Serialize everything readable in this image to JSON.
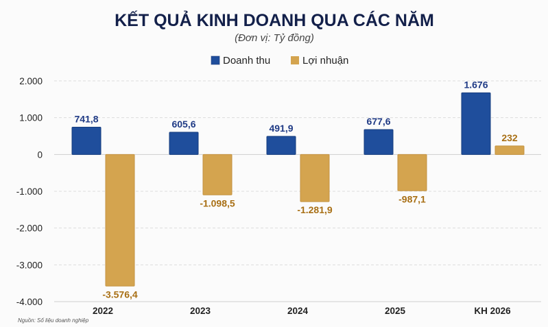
{
  "chart_data": {
    "type": "bar",
    "title": "KẾT QUẢ KINH DOANH QUA CÁC NĂM",
    "subtitle": "(Đơn vị: Tỷ đồng)",
    "categories": [
      "2022",
      "2023",
      "2024",
      "2025",
      "KH 2026"
    ],
    "series": [
      {
        "name": "Doanh thu",
        "color": "#1f4e9c",
        "values": [
          741.8,
          605.6,
          491.9,
          677.6,
          1676
        ],
        "labels": [
          "741,8",
          "605,6",
          "491,9",
          "677,6",
          "1.676"
        ],
        "label_color": "#1f3a85"
      },
      {
        "name": "Lợi nhuận",
        "color": "#d4a44f",
        "values": [
          -3576.4,
          -1098.5,
          -1281.9,
          -987.1,
          232
        ],
        "labels": [
          "-3.576,4",
          "-1.098,5",
          "-1.281,9",
          "-987,1",
          "232"
        ],
        "label_color": "#a86f14"
      }
    ],
    "ylim": [
      -4000,
      2000
    ],
    "yticks": [
      2000,
      1000,
      0,
      -1000,
      -2000,
      -3000,
      -4000
    ],
    "ytick_labels": [
      "2.000",
      "1.000",
      "0",
      "-1.000",
      "-2.000",
      "-3.000",
      "-4.000"
    ],
    "grid": true,
    "legend": "top-center",
    "xlabel": "",
    "ylabel": ""
  },
  "source": "Nguồn: Số liệu doanh nghiệp"
}
